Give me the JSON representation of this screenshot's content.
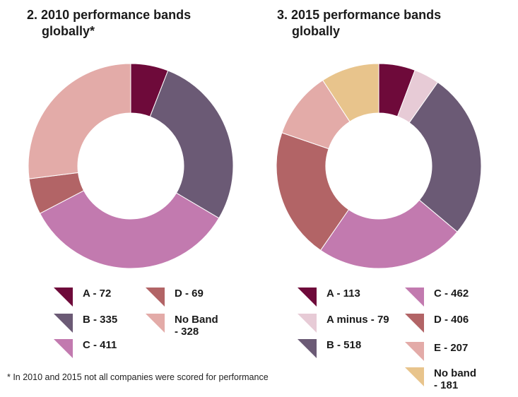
{
  "footnote": "* In 2010 and 2015 not all companies were scored for performance",
  "chart_data": [
    {
      "type": "pie",
      "variant": "donut",
      "title_number": "2.",
      "title_line1": "2010 performance bands",
      "title_line2": "globally*",
      "slices": [
        {
          "band": "A",
          "value": 72,
          "color": "#6e0a3a",
          "legend": "A - 72"
        },
        {
          "band": "B",
          "value": 335,
          "color": "#6b5a75",
          "legend": "B - 335"
        },
        {
          "band": "C",
          "value": 411,
          "color": "#c27aaf",
          "legend": "C - 411"
        },
        {
          "band": "D",
          "value": 69,
          "color": "#b26466",
          "legend": "D - 69"
        },
        {
          "band": "No Band",
          "value": 328,
          "color": "#e3aba8",
          "legend": "No Band\n - 328"
        }
      ]
    },
    {
      "type": "pie",
      "variant": "donut",
      "title_number": "3.",
      "title_line1": "2015 performance bands",
      "title_line2": "globally",
      "slices": [
        {
          "band": "A",
          "value": 113,
          "color": "#6e0a3a",
          "legend": "A - 113"
        },
        {
          "band": "A minus",
          "value": 79,
          "color": "#e7cbd6",
          "legend": "A minus - 79"
        },
        {
          "band": "B",
          "value": 518,
          "color": "#6b5a75",
          "legend": "B - 518"
        },
        {
          "band": "C",
          "value": 462,
          "color": "#c27aaf",
          "legend": "C - 462"
        },
        {
          "band": "D",
          "value": 406,
          "color": "#b26466",
          "legend": "D - 406"
        },
        {
          "band": "E",
          "value": 207,
          "color": "#e3aba8",
          "legend": "E - 207"
        },
        {
          "band": "No band",
          "value": 181,
          "color": "#e8c48c",
          "legend": "No band\n - 181"
        }
      ]
    }
  ]
}
